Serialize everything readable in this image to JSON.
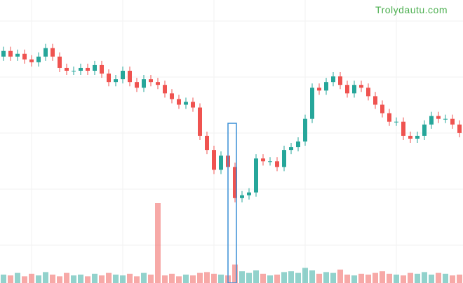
{
  "chart_data": {
    "type": "candlestick",
    "watermark": "Trolydautu.com",
    "up_color": "#26a69a",
    "down_color": "#ef5350",
    "ylim": [
      0,
      100
    ],
    "volume_ylim": [
      0,
      100
    ],
    "open": [
      80,
      82,
      80,
      81,
      79,
      78,
      80,
      83,
      80,
      76,
      75,
      75,
      76,
      75,
      77,
      74,
      71,
      72,
      75,
      71,
      69,
      72,
      71,
      70,
      67,
      65,
      63,
      64,
      62,
      52,
      47,
      40,
      45,
      41,
      30,
      31,
      32,
      44,
      43,
      43,
      41,
      47,
      48,
      50,
      58,
      69,
      68,
      71,
      73,
      70,
      67,
      70,
      69,
      66,
      63,
      60,
      57,
      57,
      52,
      51,
      52,
      56,
      59,
      58,
      58,
      56
    ],
    "high": [
      83.5,
      83.5,
      82.5,
      82.5,
      80.5,
      81.5,
      84.5,
      84.5,
      81.5,
      77.5,
      76.5,
      77.5,
      77.5,
      78.5,
      78.5,
      75.5,
      73.5,
      76.5,
      76.5,
      72.5,
      73.5,
      73.5,
      72.5,
      71.5,
      68.5,
      66.5,
      65.5,
      65.5,
      63.5,
      53.5,
      48.5,
      46.5,
      46.5,
      42.5,
      32.5,
      33.5,
      45.5,
      45.5,
      44.5,
      44.5,
      48.5,
      49.5,
      51.5,
      59.5,
      70.5,
      70.5,
      72.5,
      74.5,
      74.5,
      71.5,
      71.5,
      71.5,
      70.5,
      67.5,
      64.5,
      61.5,
      58.5,
      58.5,
      53.5,
      53.5,
      57.5,
      60.5,
      60.5,
      59.5,
      59.5,
      57.5
    ],
    "low": [
      78.5,
      78.5,
      78.5,
      77.5,
      76.5,
      76.5,
      78.5,
      78.5,
      74.5,
      73.5,
      73.5,
      73.5,
      73.5,
      73.5,
      72.5,
      69.5,
      69.5,
      70.5,
      69.5,
      67.5,
      67.5,
      69.5,
      68.5,
      65.5,
      63.5,
      61.5,
      61.5,
      60.5,
      50.5,
      45.5,
      38.5,
      38.5,
      39.5,
      28.5,
      28.5,
      29.5,
      30.5,
      41.5,
      41.5,
      39.5,
      39.5,
      45.5,
      46.5,
      48.5,
      56.5,
      66.5,
      66.5,
      69.5,
      68.5,
      65.5,
      65.5,
      67.5,
      64.5,
      61.5,
      58.5,
      55.5,
      55.5,
      50.5,
      49.5,
      49.5,
      50.5,
      54.5,
      56.5,
      56.5,
      54.5,
      51.5
    ],
    "close": [
      82,
      80,
      81,
      79,
      78,
      80,
      83,
      80,
      76,
      75,
      75,
      76,
      75,
      77,
      74,
      71,
      72,
      75,
      71,
      69,
      72,
      71,
      70,
      67,
      65,
      63,
      64,
      62,
      52,
      47,
      40,
      45,
      41,
      30,
      31,
      32,
      44,
      43,
      43,
      41,
      47,
      48,
      50,
      58,
      69,
      68,
      71,
      73,
      70,
      67,
      70,
      69,
      66,
      63,
      60,
      57,
      57,
      52,
      51,
      52,
      56,
      59,
      58,
      58,
      56,
      53
    ],
    "volume": [
      10,
      9,
      12,
      8,
      11,
      9,
      13,
      10,
      8,
      12,
      9,
      10,
      8,
      11,
      9,
      12,
      10,
      9,
      11,
      8,
      12,
      10,
      95,
      9,
      11,
      8,
      10,
      9,
      12,
      13,
      11,
      10,
      9,
      22,
      14,
      12,
      15,
      11,
      9,
      10,
      13,
      14,
      12,
      18,
      15,
      11,
      13,
      12,
      16,
      10,
      9,
      11,
      10,
      12,
      14,
      11,
      10,
      9,
      12,
      11,
      13,
      10,
      12,
      11,
      9,
      10
    ]
  }
}
